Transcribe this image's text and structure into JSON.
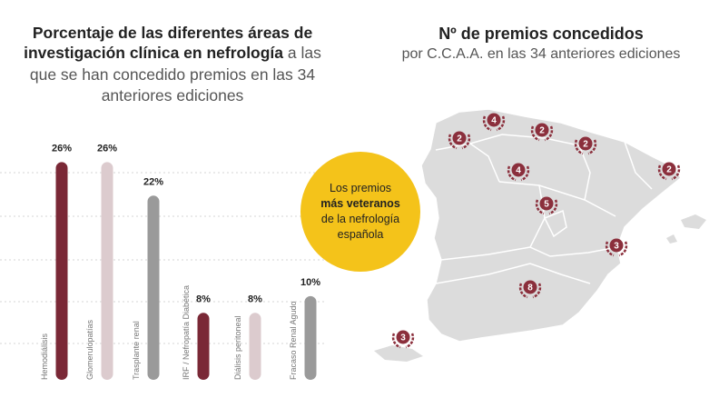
{
  "left_title": {
    "line1": "Porcentaje de las diferentes áreas de",
    "line2_bold": "investigación clínica en nefrología",
    "line2_rest": " a las",
    "line3": "que se han concedido premios en las 34",
    "line4": "anteriores ediciones"
  },
  "badge": {
    "line1": "Los premios",
    "line2": "más veteranos",
    "line3": "de la nefrología",
    "line4": "española"
  },
  "map": {
    "title": "Nº de premios concedidos",
    "subtitle": "por C.C.A.A. en las 34 anteriores ediciones",
    "markers": [
      {
        "region": "Galicia",
        "count": "2"
      },
      {
        "region": "Asturias",
        "count": "4"
      },
      {
        "region": "Cantabria",
        "count": "2"
      },
      {
        "region": "País Vasco",
        "count": "2"
      },
      {
        "region": "Castilla y León",
        "count": "4"
      },
      {
        "region": "Cataluña",
        "count": "2"
      },
      {
        "region": "Madrid",
        "count": "5"
      },
      {
        "region": "Comunidad Valenciana",
        "count": "3"
      },
      {
        "region": "Andalucía",
        "count": "8"
      },
      {
        "region": "Canarias",
        "count": "3"
      }
    ],
    "colors": {
      "land": "#dcdcdc",
      "border": "#ffffff",
      "marker": "#8b2f3c"
    }
  },
  "chart_data": {
    "type": "bar",
    "categories": [
      "Hemodiálisis",
      "Glomerulopatías",
      "Trasplante renal",
      "IRF / Nefropatía Diabética",
      "Diálisis peritoneal",
      "Fracaso Renal Agudo"
    ],
    "values": [
      26,
      26,
      22,
      8,
      8,
      10
    ],
    "value_labels": [
      "26%",
      "26%",
      "22%",
      "8%",
      "8%",
      "10%"
    ],
    "ylim": [
      0,
      28
    ],
    "grid": true,
    "colors": [
      "#7a2836",
      "#dccbce",
      "#9a9a9a",
      "#7a2836",
      "#dccbce",
      "#9a9a9a"
    ]
  }
}
